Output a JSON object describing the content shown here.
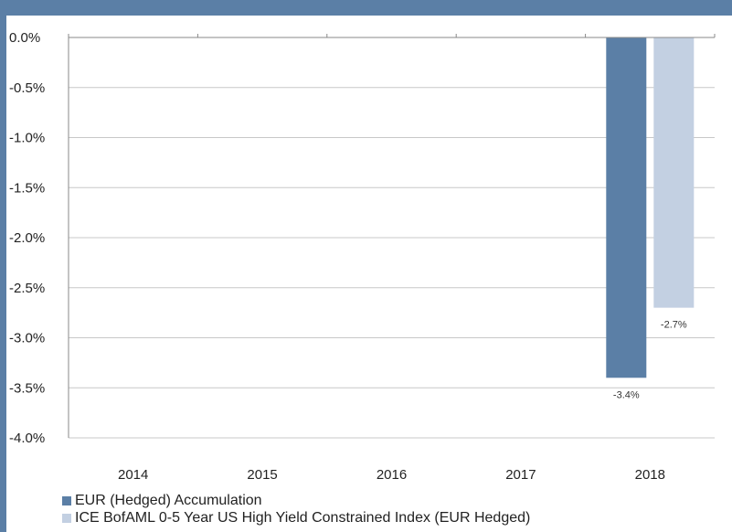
{
  "chart_data": {
    "type": "bar",
    "categories": [
      "2014",
      "2015",
      "2016",
      "2017",
      "2018"
    ],
    "series": [
      {
        "name": "EUR (Hedged) Accumulation",
        "color": "#5b7fa6",
        "values": [
          null,
          null,
          null,
          null,
          -3.4
        ]
      },
      {
        "name": "ICE BofAML 0-5 Year US High Yield Constrained Index (EUR Hedged)",
        "color": "#c3d0e2",
        "values": [
          null,
          null,
          null,
          null,
          -2.7
        ]
      }
    ],
    "data_labels": [
      {
        "series": 0,
        "category": "2018",
        "text": "-3.4%"
      },
      {
        "series": 1,
        "category": "2018",
        "text": "-2.7%"
      }
    ],
    "ylim": [
      -4.0,
      0.0
    ],
    "yticks": [
      0.0,
      -0.5,
      -1.0,
      -1.5,
      -2.0,
      -2.5,
      -3.0,
      -3.5,
      -4.0
    ],
    "ytick_labels": [
      "0.0%",
      "-0.5%",
      "-1.0%",
      "-1.5%",
      "-2.0%",
      "-2.5%",
      "-3.0%",
      "-3.5%",
      "-4.0%"
    ],
    "grid": true,
    "legend_position": "bottom-left",
    "title": "",
    "xlabel": "",
    "ylabel": ""
  }
}
